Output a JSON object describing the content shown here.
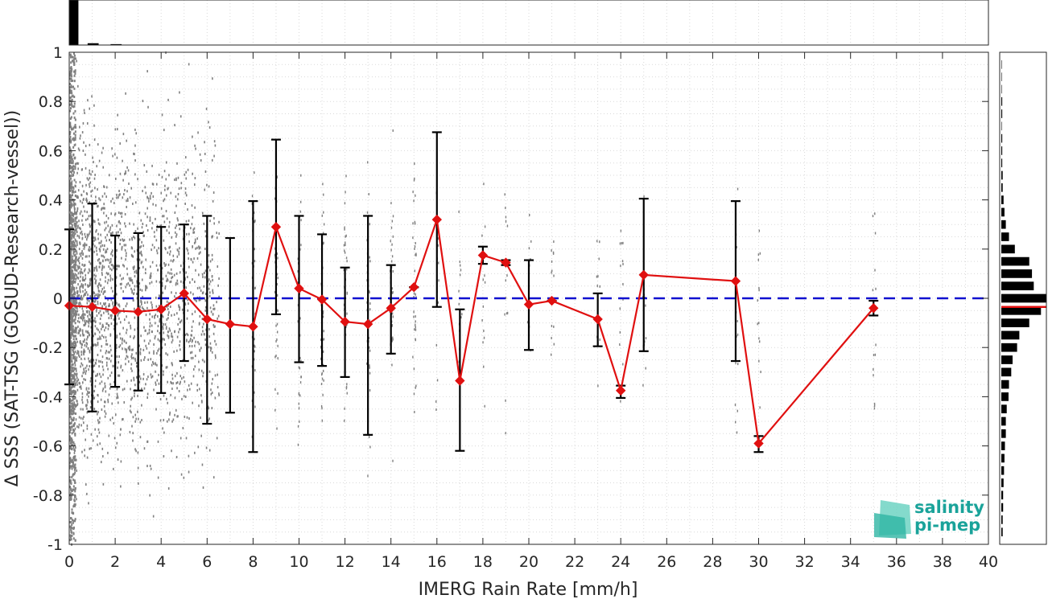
{
  "chart_data": {
    "type": "scatter",
    "xlabel": "IMERG Rain Rate [mm/h]",
    "ylabel": "Δ SSS (SAT-TSG (GOSUD-Research-vessel))",
    "xlim": [
      0,
      40
    ],
    "ylim": [
      -1,
      1
    ],
    "xticks": [
      "0",
      "2",
      "4",
      "6",
      "8",
      "10",
      "12",
      "14",
      "16",
      "18",
      "20",
      "22",
      "24",
      "26",
      "28",
      "30",
      "32",
      "34",
      "36",
      "38",
      "40"
    ],
    "yticks": [
      "1",
      "0.8",
      "0.6",
      "0.4",
      "0.2",
      "0",
      "-0.2",
      "-0.4",
      "-0.6",
      "-0.8",
      "-1"
    ],
    "grid": true,
    "reference_line": {
      "y": 0,
      "color": "#1010d0",
      "style": "dashed"
    },
    "series": [
      {
        "type": "line",
        "color": "#e01010",
        "marker": "diamond",
        "x": [
          0,
          1,
          2,
          3,
          4,
          5,
          6,
          7,
          8,
          9,
          10,
          11,
          12,
          13,
          14,
          15,
          16,
          17,
          18,
          19,
          20,
          21,
          23,
          24,
          25,
          29,
          30,
          35
        ],
        "y": [
          -0.03,
          -0.035,
          -0.05,
          -0.055,
          -0.045,
          0.02,
          -0.085,
          -0.105,
          -0.115,
          0.29,
          0.04,
          -0.005,
          -0.095,
          -0.105,
          -0.04,
          0.045,
          0.32,
          -0.335,
          0.175,
          0.145,
          -0.025,
          -0.01,
          -0.085,
          -0.375,
          0.095,
          0.07,
          -0.59,
          -0.04
        ],
        "err_low": [
          -0.35,
          -0.46,
          -0.36,
          -0.375,
          -0.385,
          -0.255,
          -0.51,
          -0.465,
          -0.625,
          -0.065,
          -0.26,
          -0.275,
          -0.32,
          -0.555,
          -0.225,
          0.045,
          -0.035,
          -0.62,
          0.14,
          0.135,
          -0.21,
          -0.01,
          -0.195,
          -0.405,
          -0.215,
          -0.255,
          -0.625,
          -0.07
        ],
        "err_high": [
          0.28,
          0.385,
          0.255,
          0.265,
          0.29,
          0.3,
          0.335,
          0.245,
          0.395,
          0.645,
          0.335,
          0.26,
          0.125,
          0.335,
          0.135,
          0.045,
          0.675,
          -0.045,
          0.21,
          0.155,
          0.155,
          -0.01,
          0.02,
          -0.355,
          0.405,
          0.395,
          -0.56,
          -0.01
        ]
      }
    ],
    "scatter_points": {
      "color": "#808080",
      "description_counts": "dense near 0 mm/h, sparse beyond 10 mm/h"
    },
    "top_histogram": {
      "bins_x": [
        0,
        1,
        2
      ],
      "heights": [
        1.0,
        0.04,
        0.02
      ]
    },
    "right_histogram": {
      "bins_y": [
        0.95,
        0.9,
        0.85,
        0.8,
        0.75,
        0.7,
        0.65,
        0.6,
        0.55,
        0.5,
        0.45,
        0.4,
        0.35,
        0.3,
        0.25,
        0.2,
        0.15,
        0.1,
        0.05,
        0.0,
        -0.05,
        -0.1,
        -0.15,
        -0.2,
        -0.25,
        -0.3,
        -0.35,
        -0.4,
        -0.45,
        -0.5,
        -0.55,
        -0.6,
        -0.65,
        -0.7,
        -0.75,
        -0.8,
        -0.85,
        -0.9,
        -0.95
      ],
      "heights": [
        0.01,
        0.01,
        0.01,
        0.02,
        0.02,
        0.01,
        0.02,
        0.02,
        0.02,
        0.03,
        0.03,
        0.05,
        0.07,
        0.1,
        0.17,
        0.3,
        0.62,
        0.68,
        0.72,
        1.0,
        0.88,
        0.62,
        0.4,
        0.35,
        0.25,
        0.22,
        0.17,
        0.16,
        0.12,
        0.1,
        0.1,
        0.08,
        0.07,
        0.06,
        0.05,
        0.04,
        0.04,
        0.03,
        0.03
      ],
      "median_marker_y": -0.035,
      "median_color": "#e01010"
    }
  },
  "logo": {
    "line1": "salinity",
    "line2": "pi-mep"
  }
}
